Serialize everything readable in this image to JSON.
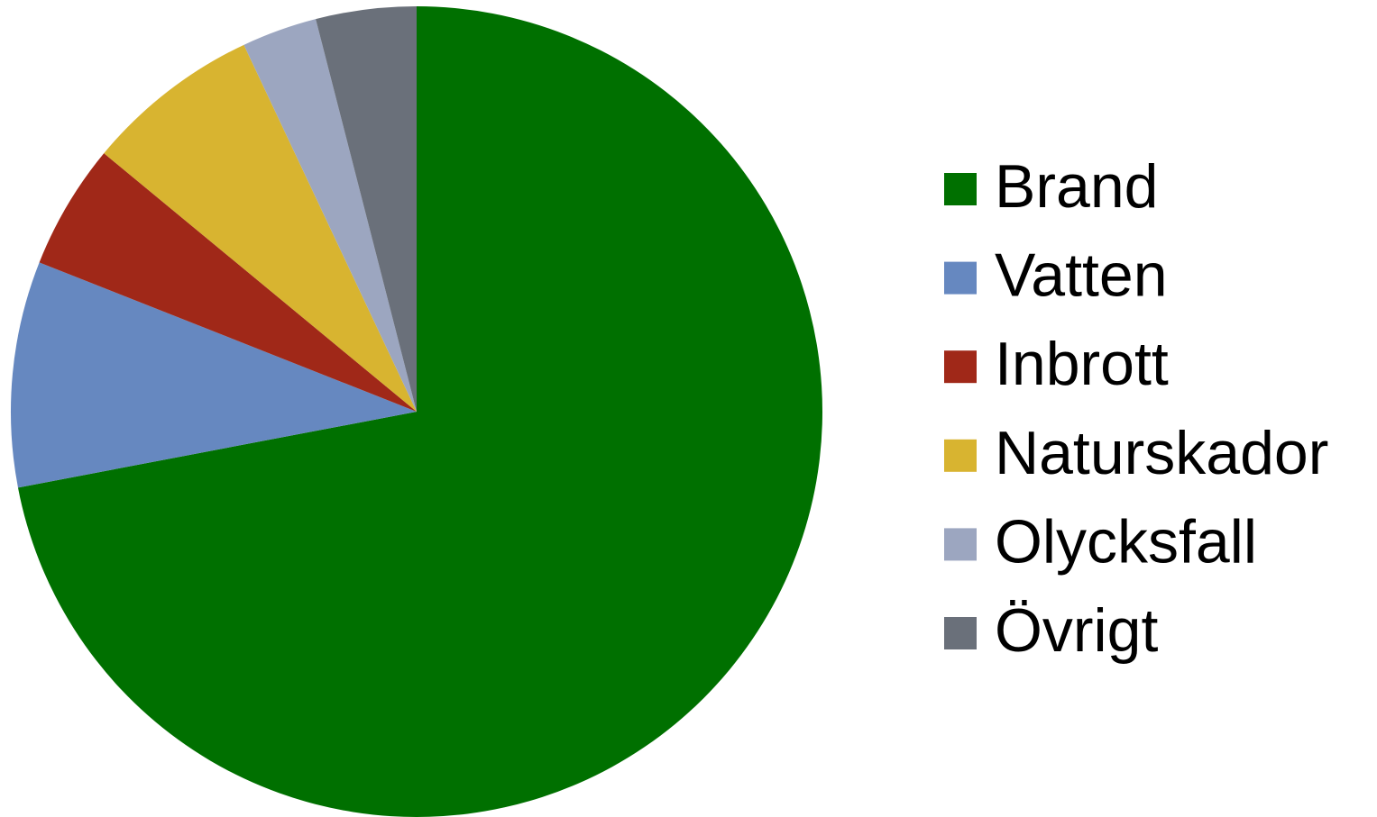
{
  "chart_data": {
    "type": "pie",
    "categories": [
      "Brand",
      "Vatten",
      "Inbrott",
      "Naturskador",
      "Olycksfall",
      "Övrigt"
    ],
    "values": [
      72,
      9,
      5,
      7,
      3,
      4
    ],
    "colors": [
      "#007000",
      "#6688c0",
      "#a02818",
      "#d8b430",
      "#9ca6c0",
      "#6a707a"
    ],
    "legend": "right"
  }
}
